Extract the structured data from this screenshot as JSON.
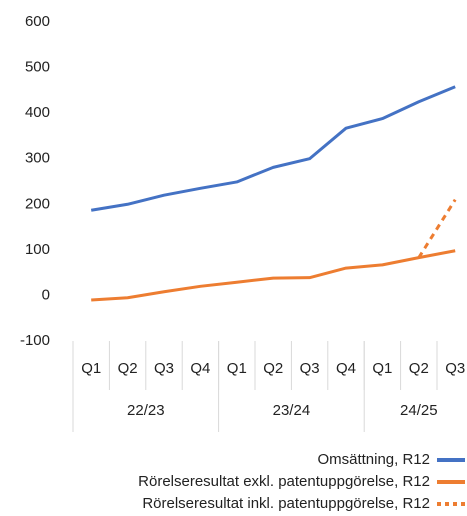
{
  "chart_data": {
    "type": "line",
    "categories": [
      "Q1",
      "Q2",
      "Q3",
      "Q4",
      "Q1",
      "Q2",
      "Q3",
      "Q4",
      "Q1",
      "Q2",
      "Q3"
    ],
    "category_groups": [
      {
        "label": "22/23",
        "count": 4
      },
      {
        "label": "23/24",
        "count": 4
      },
      {
        "label": "24/25",
        "count": 3
      }
    ],
    "series": [
      {
        "name": "Omsättning, R12",
        "color": "#4472c4",
        "dash": "solid",
        "values": [
          187,
          200,
          220,
          235,
          249,
          281,
          300,
          367,
          388,
          425,
          458
        ]
      },
      {
        "name": "Rörelseresultat exkl. patentuppgörelse, R12",
        "color": "#ed7d31",
        "dash": "solid",
        "values": [
          -10,
          -5,
          8,
          20,
          29,
          38,
          39,
          60,
          67,
          83,
          98
        ]
      },
      {
        "name": "Rörelseresultat inkl. patentuppgörelse, R12",
        "color": "#ed7d31",
        "dash": "dotted",
        "values": [
          null,
          null,
          null,
          null,
          null,
          null,
          null,
          null,
          null,
          83,
          210
        ]
      }
    ],
    "ylim": [
      -100,
      600
    ],
    "yticks": [
      -100,
      0,
      100,
      200,
      300,
      400,
      500,
      600
    ],
    "grid": false,
    "legend": "bottom-right"
  }
}
